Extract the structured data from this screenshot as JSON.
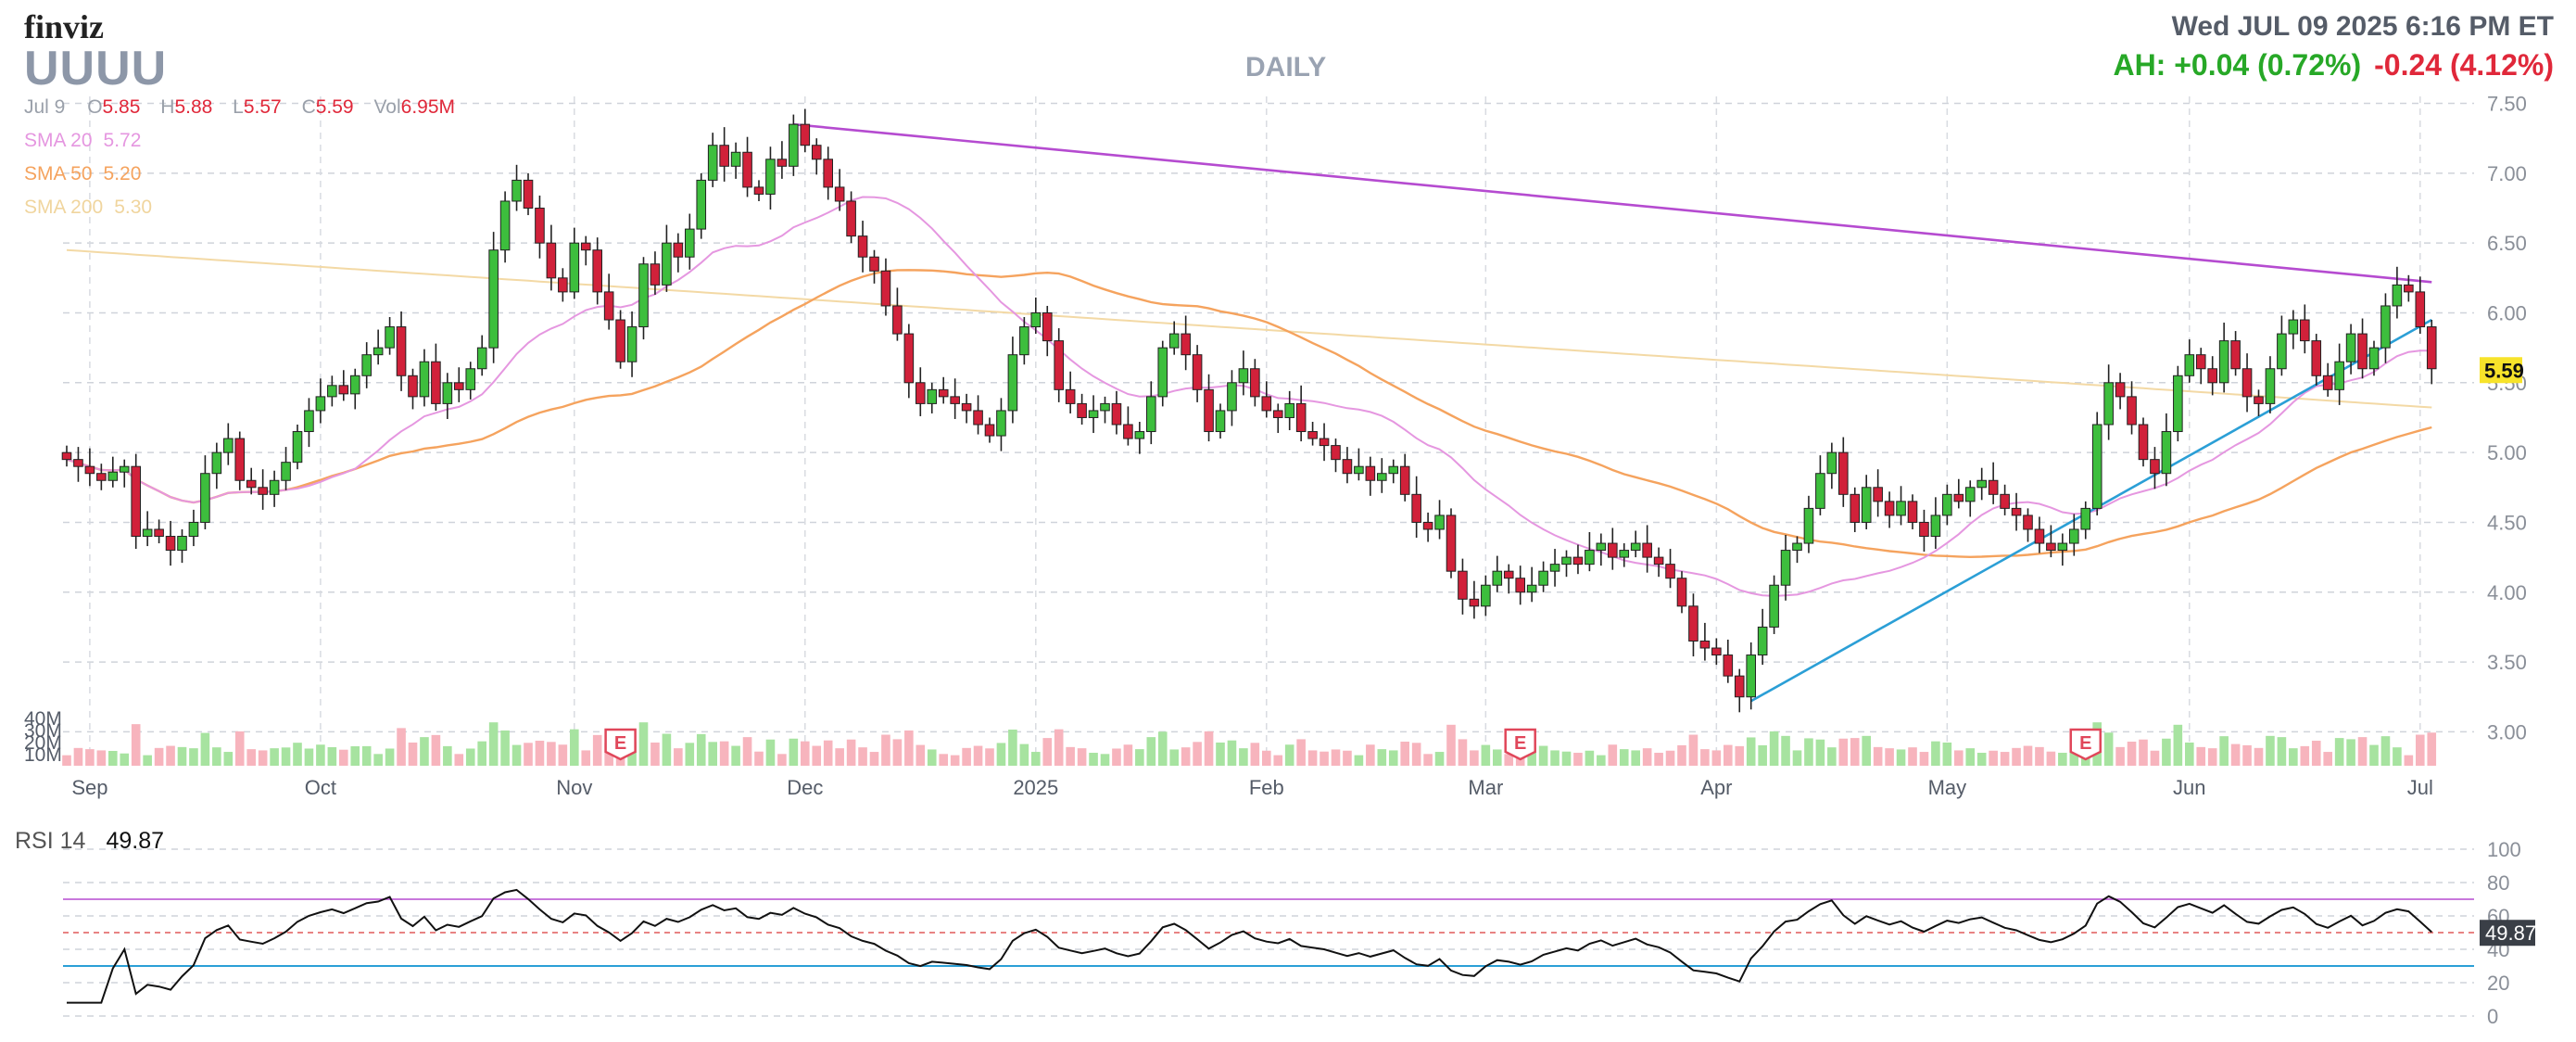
{
  "brand": "finviz",
  "ticker": "UUUU",
  "timeframe": "DAILY",
  "datetime": "Wed JUL 09 2025 6:16 PM ET",
  "after_hours": "AH: +0.04 (0.72%)",
  "change": "-0.24 (4.12%)",
  "ohlc": {
    "date": "Jul 9",
    "o_label": "O",
    "o": "5.85",
    "h_label": "H",
    "h": "5.88",
    "l_label": "L",
    "l": "5.57",
    "c_label": "C",
    "c": "5.59",
    "vol_label": "Vol",
    "vol": "6.95M"
  },
  "sma": [
    {
      "label": "SMA 20",
      "value": "5.72",
      "color": "#e597e0"
    },
    {
      "label": "SMA 50",
      "value": "5.20",
      "color": "#f5a35e"
    },
    {
      "label": "SMA 200",
      "value": "5.30",
      "color": "#f3d9a5"
    }
  ],
  "price_badge": "5.59",
  "rsi": {
    "label": "RSI 14",
    "value": "49.87",
    "badge": "49.87"
  },
  "colors": {
    "up": "#3dbe3d",
    "down": "#d1213a",
    "trendline_top": "#b54bd0",
    "trendline_support": "#2b9fd6",
    "badge": "#f7e32a",
    "earnings": "#e0475a",
    "vol_up": "#a7e3a0",
    "vol_down": "#f7b4bd"
  },
  "chart_data": {
    "type": "candlestick",
    "y_ticks": [
      "7.50",
      "7.00",
      "6.50",
      "6.00",
      "5.50",
      "5.00",
      "4.50",
      "4.00",
      "3.50",
      "3.00"
    ],
    "ylim": [
      2.85,
      7.55
    ],
    "x_labels": [
      {
        "label": "Sep",
        "i": 2
      },
      {
        "label": "Oct",
        "i": 22
      },
      {
        "label": "Nov",
        "i": 44
      },
      {
        "label": "Dec",
        "i": 64
      },
      {
        "label": "2025",
        "i": 84
      },
      {
        "label": "Feb",
        "i": 104
      },
      {
        "label": "Mar",
        "i": 123
      },
      {
        "label": "Apr",
        "i": 143
      },
      {
        "label": "May",
        "i": 163
      },
      {
        "label": "Jun",
        "i": 184
      },
      {
        "label": "Jul",
        "i": 204
      }
    ],
    "volume_ticks": [
      {
        "label": "40M",
        "v": 40
      },
      {
        "label": "30M",
        "v": 30
      },
      {
        "label": "20M",
        "v": 20
      },
      {
        "label": "10M",
        "v": 10
      }
    ],
    "earnings": [
      {
        "i": 48,
        "label": "E"
      },
      {
        "i": 126,
        "label": "E"
      },
      {
        "i": 175,
        "label": "E"
      }
    ],
    "rsi_ticks": [
      "100",
      "80",
      "60",
      "40",
      "20",
      "0"
    ],
    "rsi_levels": {
      "overbought": 70,
      "oversold": 30,
      "mid": 50
    },
    "closes": [
      4.95,
      4.9,
      4.85,
      4.8,
      4.86,
      4.9,
      4.4,
      4.45,
      4.4,
      4.3,
      4.4,
      4.5,
      4.85,
      5.0,
      5.1,
      4.8,
      4.75,
      4.7,
      4.8,
      4.93,
      5.15,
      5.3,
      5.4,
      5.48,
      5.42,
      5.55,
      5.7,
      5.75,
      5.9,
      5.55,
      5.4,
      5.65,
      5.35,
      5.5,
      5.45,
      5.6,
      5.75,
      6.45,
      6.8,
      6.95,
      6.75,
      6.5,
      6.25,
      6.15,
      6.5,
      6.45,
      6.15,
      5.95,
      5.65,
      5.9,
      6.35,
      6.2,
      6.5,
      6.4,
      6.6,
      6.95,
      7.2,
      7.05,
      7.15,
      6.9,
      6.85,
      7.1,
      7.05,
      7.35,
      7.2,
      7.1,
      6.9,
      6.8,
      6.55,
      6.4,
      6.3,
      6.05,
      5.85,
      5.5,
      5.35,
      5.45,
      5.4,
      5.35,
      5.3,
      5.2,
      5.12,
      5.3,
      5.7,
      5.9,
      6.0,
      5.8,
      5.45,
      5.35,
      5.25,
      5.3,
      5.35,
      5.2,
      5.1,
      5.15,
      5.4,
      5.75,
      5.85,
      5.7,
      5.45,
      5.15,
      5.3,
      5.5,
      5.6,
      5.4,
      5.3,
      5.25,
      5.35,
      5.15,
      5.1,
      5.05,
      4.95,
      4.85,
      4.9,
      4.8,
      4.85,
      4.9,
      4.7,
      4.5,
      4.45,
      4.55,
      4.15,
      3.95,
      3.9,
      4.05,
      4.15,
      4.1,
      4.0,
      4.05,
      4.15,
      4.2,
      4.25,
      4.2,
      4.3,
      4.35,
      4.25,
      4.3,
      4.35,
      4.25,
      4.2,
      4.1,
      3.9,
      3.65,
      3.6,
      3.55,
      3.4,
      3.25,
      3.55,
      3.75,
      4.05,
      4.3,
      4.35,
      4.6,
      4.85,
      5.0,
      4.7,
      4.5,
      4.75,
      4.65,
      4.55,
      4.65,
      4.5,
      4.4,
      4.55,
      4.7,
      4.65,
      4.75,
      4.8,
      4.7,
      4.6,
      4.55,
      4.45,
      4.35,
      4.3,
      4.35,
      4.45,
      4.6,
      5.2,
      5.5,
      5.4,
      5.2,
      4.95,
      4.85,
      5.15,
      5.55,
      5.7,
      5.6,
      5.5,
      5.8,
      5.6,
      5.4,
      5.35,
      5.6,
      5.85,
      5.95,
      5.8,
      5.55,
      5.45,
      5.65,
      5.85,
      5.6,
      5.75,
      6.05,
      6.2,
      6.15,
      5.9,
      5.6
    ]
  }
}
